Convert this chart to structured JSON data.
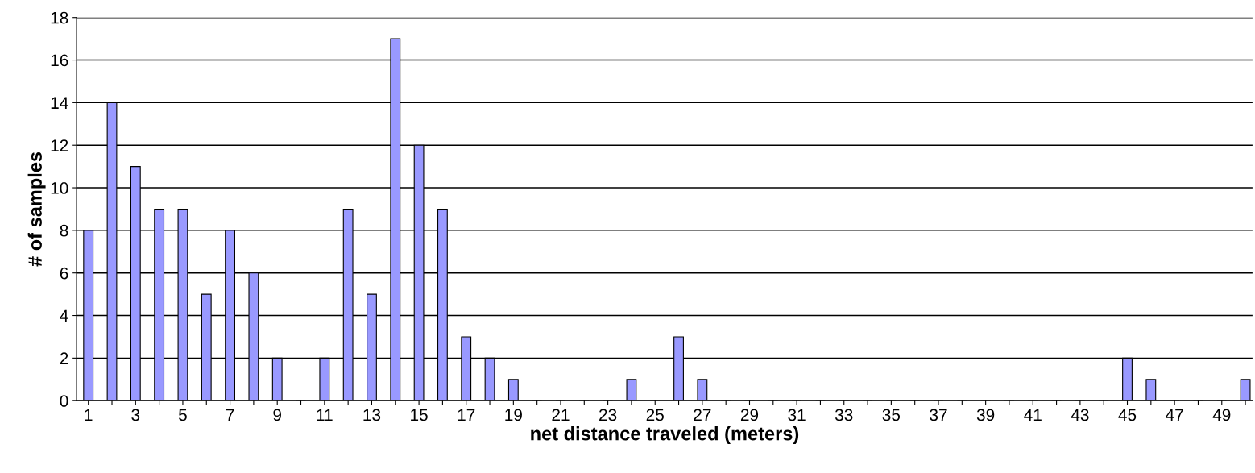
{
  "chart_data": {
    "type": "bar",
    "xlabel": "net distance traveled (meters)",
    "ylabel": "# of samples",
    "categories": [
      "1",
      null,
      "3",
      null,
      "5",
      null,
      "7",
      null,
      "9",
      null,
      "11",
      null,
      "13",
      null,
      "15",
      null,
      "17",
      null,
      "19",
      null,
      "21",
      null,
      "23",
      null,
      "25",
      null,
      "27",
      null,
      "29",
      null,
      "31",
      null,
      "33",
      null,
      "35",
      null,
      "37",
      null,
      "39",
      null,
      "41",
      null,
      "43",
      null,
      "45",
      null,
      "47",
      null,
      "49",
      null
    ],
    "values": [
      8,
      14,
      11,
      9,
      9,
      5,
      8,
      6,
      2,
      0,
      2,
      9,
      5,
      17,
      12,
      9,
      3,
      2,
      1,
      0,
      0,
      0,
      0,
      1,
      0,
      3,
      1,
      0,
      0,
      0,
      0,
      0,
      0,
      0,
      0,
      0,
      0,
      0,
      0,
      0,
      0,
      0,
      0,
      0,
      2,
      1,
      0,
      0,
      0,
      1
    ],
    "color": "#9999ff",
    "ylim": [
      0,
      18
    ],
    "yticks": [
      0,
      2,
      4,
      6,
      8,
      10,
      12,
      14,
      16,
      18
    ],
    "grid": "y",
    "legend": false
  }
}
